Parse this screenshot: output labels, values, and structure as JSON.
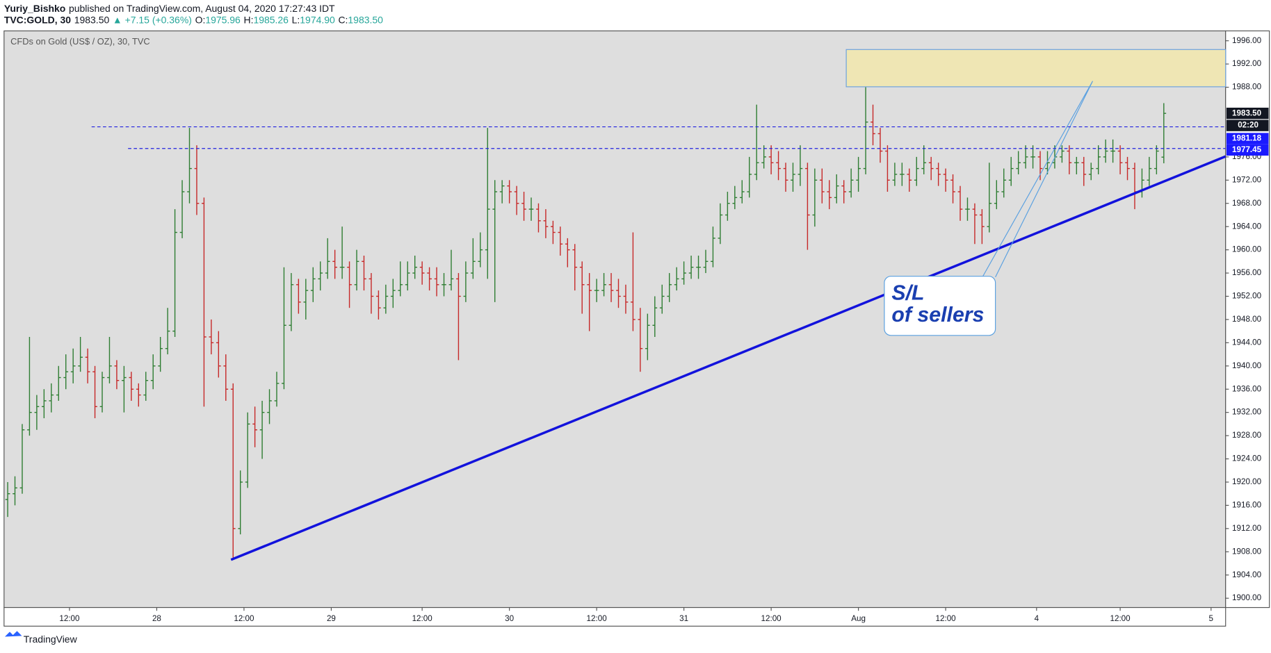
{
  "header": {
    "author": "Yuriy_Bishko",
    "published": "published on TradingView.com, August 04, 2020 17:27:43 IDT",
    "symbol": "TVC:GOLD, 30",
    "price": "1983.50",
    "change": "▲ +7.15 (+0.36%)",
    "o_label": "O:",
    "o": "1975.96",
    "h_label": "H:",
    "h": "1985.26",
    "l_label": "L:",
    "l": "1974.90",
    "c_label": "C:",
    "c": "1983.50"
  },
  "footer": "TradingView",
  "annotation": {
    "line1": "S/L",
    "line2": "of sellers"
  },
  "chart_data": {
    "type": "ohlc",
    "title": "CFDs on Gold (US$ / OZ), 30, TVC",
    "up_color": "#2e7d32",
    "down_color": "#c62828",
    "xlim": [
      0,
      168
    ],
    "ylim": [
      1898.4,
      1997.7
    ],
    "xticks": [
      {
        "value": 9,
        "label": "12:00"
      },
      {
        "value": 21,
        "label": "28"
      },
      {
        "value": 33,
        "label": "12:00"
      },
      {
        "value": 45,
        "label": "29"
      },
      {
        "value": 57.5,
        "label": "12:00"
      },
      {
        "value": 69.5,
        "label": "30"
      },
      {
        "value": 81.5,
        "label": "12:00"
      },
      {
        "value": 93.5,
        "label": "31"
      },
      {
        "value": 105.5,
        "label": "12:00"
      },
      {
        "value": 117.5,
        "label": "Aug"
      },
      {
        "value": 129.5,
        "label": "12:00"
      },
      {
        "value": 142,
        "label": "4"
      },
      {
        "value": 153.5,
        "label": "12:00"
      },
      {
        "value": 166,
        "label": "5"
      }
    ],
    "yticks": [
      {
        "value": 1900,
        "label": "1900.00"
      },
      {
        "value": 1904,
        "label": "1904.00"
      },
      {
        "value": 1908,
        "label": "1908.00"
      },
      {
        "value": 1912,
        "label": "1912.00"
      },
      {
        "value": 1916,
        "label": "1916.00"
      },
      {
        "value": 1920,
        "label": "1920.00"
      },
      {
        "value": 1924,
        "label": "1924.00"
      },
      {
        "value": 1928,
        "label": "1928.00"
      },
      {
        "value": 1932,
        "label": "1932.00"
      },
      {
        "value": 1936,
        "label": "1936.00"
      },
      {
        "value": 1940,
        "label": "1940.00"
      },
      {
        "value": 1944,
        "label": "1944.00"
      },
      {
        "value": 1948,
        "label": "1948.00"
      },
      {
        "value": 1952,
        "label": "1952.00"
      },
      {
        "value": 1956,
        "label": "1956.00"
      },
      {
        "value": 1960,
        "label": "1960.00"
      },
      {
        "value": 1964,
        "label": "1964.00"
      },
      {
        "value": 1968,
        "label": "1968.00"
      },
      {
        "value": 1972,
        "label": "1972.00"
      },
      {
        "value": 1976,
        "label": "1976.00"
      },
      {
        "value": 1988,
        "label": "1988.00"
      },
      {
        "value": 1992,
        "label": "1992.00"
      },
      {
        "value": 1996,
        "label": "1996.00"
      }
    ],
    "last_price": {
      "value": 1983.5,
      "label": "1983.50",
      "countdown": "02:20"
    },
    "levels": [
      {
        "value": 1981.18,
        "label": "1981.18"
      },
      {
        "value": 1977.45,
        "label": "1977.45"
      }
    ],
    "bars": [
      [
        1917,
        1920,
        1914,
        1918
      ],
      [
        1918,
        1921,
        1916,
        1919
      ],
      [
        1919,
        1930,
        1918,
        1929
      ],
      [
        1929,
        1945,
        1928,
        1932
      ],
      [
        1932,
        1935,
        1929,
        1933
      ],
      [
        1933,
        1936,
        1931,
        1934
      ],
      [
        1934,
        1937,
        1932,
        1935
      ],
      [
        1935,
        1940,
        1934,
        1938
      ],
      [
        1938,
        1942,
        1936,
        1939
      ],
      [
        1939,
        1943,
        1937,
        1940
      ],
      [
        1940,
        1945,
        1939,
        1941.5
      ],
      [
        1941.5,
        1943,
        1937,
        1939
      ],
      [
        1939,
        1940,
        1931,
        1933
      ],
      [
        1933,
        1939,
        1932,
        1938
      ],
      [
        1938,
        1945,
        1937,
        1940
      ],
      [
        1940,
        1941,
        1936,
        1937.5
      ],
      [
        1937.5,
        1940,
        1932,
        1938
      ],
      [
        1938,
        1939,
        1934,
        1936
      ],
      [
        1936,
        1937,
        1933,
        1935
      ],
      [
        1935,
        1939,
        1934,
        1937.5
      ],
      [
        1937.5,
        1942,
        1936,
        1940
      ],
      [
        1940,
        1945,
        1939,
        1943
      ],
      [
        1943,
        1950,
        1942,
        1946
      ],
      [
        1946,
        1967,
        1945,
        1963
      ],
      [
        1963,
        1972,
        1962,
        1970
      ],
      [
        1970,
        1981,
        1968,
        1974
      ],
      [
        1974,
        1978,
        1966,
        1968
      ],
      [
        1968,
        1969,
        1933,
        1945
      ],
      [
        1945,
        1948,
        1942,
        1944
      ],
      [
        1944,
        1946,
        1938,
        1940
      ],
      [
        1940,
        1942,
        1934,
        1936
      ],
      [
        1936,
        1937,
        1907,
        1912
      ],
      [
        1912,
        1922,
        1911,
        1920
      ],
      [
        1920,
        1932,
        1919,
        1930
      ],
      [
        1930,
        1933,
        1926,
        1929
      ],
      [
        1929,
        1934,
        1924,
        1932
      ],
      [
        1932,
        1936,
        1930,
        1934
      ],
      [
        1934,
        1939,
        1933,
        1937
      ],
      [
        1937,
        1957,
        1936,
        1947
      ],
      [
        1947,
        1956,
        1946,
        1954
      ],
      [
        1954,
        1955,
        1949,
        1951
      ],
      [
        1951,
        1955,
        1948,
        1953
      ],
      [
        1953,
        1957,
        1951,
        1955
      ],
      [
        1955,
        1958,
        1953,
        1956
      ],
      [
        1956,
        1962,
        1955,
        1958
      ],
      [
        1958,
        1960,
        1955,
        1957
      ],
      [
        1957,
        1964,
        1955,
        1957
      ],
      [
        1957,
        1958,
        1950,
        1954
      ],
      [
        1954,
        1960,
        1953,
        1958
      ],
      [
        1958,
        1959,
        1953,
        1955
      ],
      [
        1955,
        1956,
        1949,
        1952
      ],
      [
        1952,
        1953,
        1948,
        1950
      ],
      [
        1950,
        1954,
        1949,
        1952
      ],
      [
        1952,
        1955,
        1950,
        1953
      ],
      [
        1953,
        1958,
        1952,
        1954
      ],
      [
        1954,
        1958,
        1953,
        1956
      ],
      [
        1956,
        1959,
        1955,
        1957
      ],
      [
        1957,
        1958,
        1954,
        1956
      ],
      [
        1956,
        1957,
        1953,
        1955
      ],
      [
        1955,
        1957,
        1952,
        1954
      ],
      [
        1954,
        1956,
        1952,
        1954
      ],
      [
        1954,
        1960,
        1953,
        1955
      ],
      [
        1955,
        1956,
        1941,
        1952
      ],
      [
        1952,
        1958,
        1951,
        1956
      ],
      [
        1956,
        1962,
        1955,
        1958
      ],
      [
        1958,
        1963,
        1957,
        1960
      ],
      [
        1960,
        1981,
        1955,
        1967
      ],
      [
        1967,
        1972,
        1951,
        1970
      ],
      [
        1970,
        1972,
        1968,
        1971
      ],
      [
        1971,
        1972,
        1968,
        1970
      ],
      [
        1970,
        1971,
        1966,
        1968
      ],
      [
        1968,
        1970,
        1965,
        1967
      ],
      [
        1967,
        1969,
        1965,
        1967
      ],
      [
        1967,
        1968,
        1963,
        1965
      ],
      [
        1965,
        1967,
        1962,
        1964
      ],
      [
        1964,
        1965,
        1961,
        1963
      ],
      [
        1963,
        1964,
        1959,
        1961
      ],
      [
        1961,
        1962,
        1957,
        1960
      ],
      [
        1960,
        1961,
        1953,
        1957
      ],
      [
        1957,
        1958,
        1949,
        1954
      ],
      [
        1954,
        1956,
        1946,
        1953
      ],
      [
        1953,
        1955,
        1951,
        1953
      ],
      [
        1953,
        1956,
        1952,
        1954
      ],
      [
        1954,
        1956,
        1951,
        1953
      ],
      [
        1953,
        1955,
        1950,
        1952
      ],
      [
        1952,
        1954,
        1949,
        1951
      ],
      [
        1951,
        1963,
        1946,
        1948
      ],
      [
        1948,
        1950,
        1939,
        1943
      ],
      [
        1943,
        1949,
        1941,
        1947
      ],
      [
        1947,
        1952,
        1945,
        1950
      ],
      [
        1950,
        1954,
        1949,
        1952
      ],
      [
        1952,
        1956,
        1951,
        1954
      ],
      [
        1954,
        1957,
        1953,
        1955
      ],
      [
        1955,
        1958,
        1954,
        1956
      ],
      [
        1956,
        1959,
        1955,
        1957
      ],
      [
        1957,
        1959,
        1955,
        1957
      ],
      [
        1957,
        1960,
        1956,
        1958
      ],
      [
        1958,
        1964,
        1957,
        1962
      ],
      [
        1962,
        1968,
        1961,
        1966
      ],
      [
        1966,
        1970,
        1965,
        1968
      ],
      [
        1968,
        1971,
        1967,
        1969
      ],
      [
        1969,
        1972,
        1968,
        1970
      ],
      [
        1970,
        1976,
        1969,
        1973
      ],
      [
        1973,
        1985,
        1972,
        1975
      ],
      [
        1975,
        1978,
        1974,
        1976
      ],
      [
        1976,
        1978,
        1973,
        1975
      ],
      [
        1975,
        1977,
        1972,
        1974
      ],
      [
        1974,
        1975,
        1970,
        1972
      ],
      [
        1972,
        1975,
        1970,
        1973
      ],
      [
        1973,
        1978,
        1971,
        1974
      ],
      [
        1974,
        1975,
        1960,
        1966
      ],
      [
        1966,
        1974,
        1964,
        1972
      ],
      [
        1972,
        1974,
        1968,
        1970
      ],
      [
        1970,
        1972,
        1967,
        1969
      ],
      [
        1969,
        1973,
        1968,
        1971
      ],
      [
        1971,
        1972,
        1968,
        1970
      ],
      [
        1970,
        1974,
        1969,
        1972
      ],
      [
        1972,
        1976,
        1970,
        1974
      ],
      [
        1974,
        1988,
        1973,
        1982
      ],
      [
        1982,
        1985,
        1978,
        1980
      ],
      [
        1980,
        1981,
        1975,
        1977
      ],
      [
        1977,
        1978,
        1970,
        1972
      ],
      [
        1972,
        1975,
        1971,
        1973
      ],
      [
        1973,
        1975,
        1971,
        1973
      ],
      [
        1973,
        1974,
        1970,
        1972
      ],
      [
        1972,
        1976,
        1971,
        1974
      ],
      [
        1974,
        1978,
        1973,
        1975
      ],
      [
        1975,
        1976,
        1972,
        1974
      ],
      [
        1974,
        1975,
        1971,
        1973
      ],
      [
        1973,
        1974,
        1970,
        1972
      ],
      [
        1972,
        1973,
        1968,
        1970
      ],
      [
        1970,
        1971,
        1965,
        1967
      ],
      [
        1967,
        1969,
        1965,
        1967
      ],
      [
        1967,
        1968,
        1961,
        1966
      ],
      [
        1966,
        1967,
        1961,
        1964
      ],
      [
        1964,
        1975,
        1963,
        1968
      ],
      [
        1968,
        1972,
        1967,
        1970
      ],
      [
        1970,
        1974,
        1969,
        1972
      ],
      [
        1972,
        1976,
        1971,
        1974
      ],
      [
        1974,
        1977,
        1973,
        1975
      ],
      [
        1975,
        1978,
        1974,
        1976
      ],
      [
        1976,
        1978,
        1974,
        1976
      ],
      [
        1976,
        1977,
        1972,
        1974
      ],
      [
        1974,
        1977,
        1973,
        1975
      ],
      [
        1975,
        1978,
        1974,
        1976
      ],
      [
        1976,
        1978,
        1975,
        1977
      ],
      [
        1977,
        1978,
        1973,
        1975
      ],
      [
        1975,
        1976,
        1973,
        1975
      ],
      [
        1975,
        1976,
        1971,
        1973
      ],
      [
        1973,
        1975,
        1972,
        1974
      ],
      [
        1974,
        1978,
        1973,
        1976
      ],
      [
        1976,
        1979,
        1975,
        1977
      ],
      [
        1977,
        1979,
        1975,
        1977
      ],
      [
        1977,
        1978,
        1973,
        1975
      ],
      [
        1975,
        1976,
        1972,
        1974
      ],
      [
        1974,
        1975,
        1967,
        1970
      ],
      [
        1970,
        1974,
        1969,
        1972
      ],
      [
        1972,
        1976,
        1971,
        1974
      ],
      [
        1974,
        1978,
        1973,
        1977
      ],
      [
        1975.96,
        1985.26,
        1974.9,
        1983.5
      ]
    ]
  }
}
